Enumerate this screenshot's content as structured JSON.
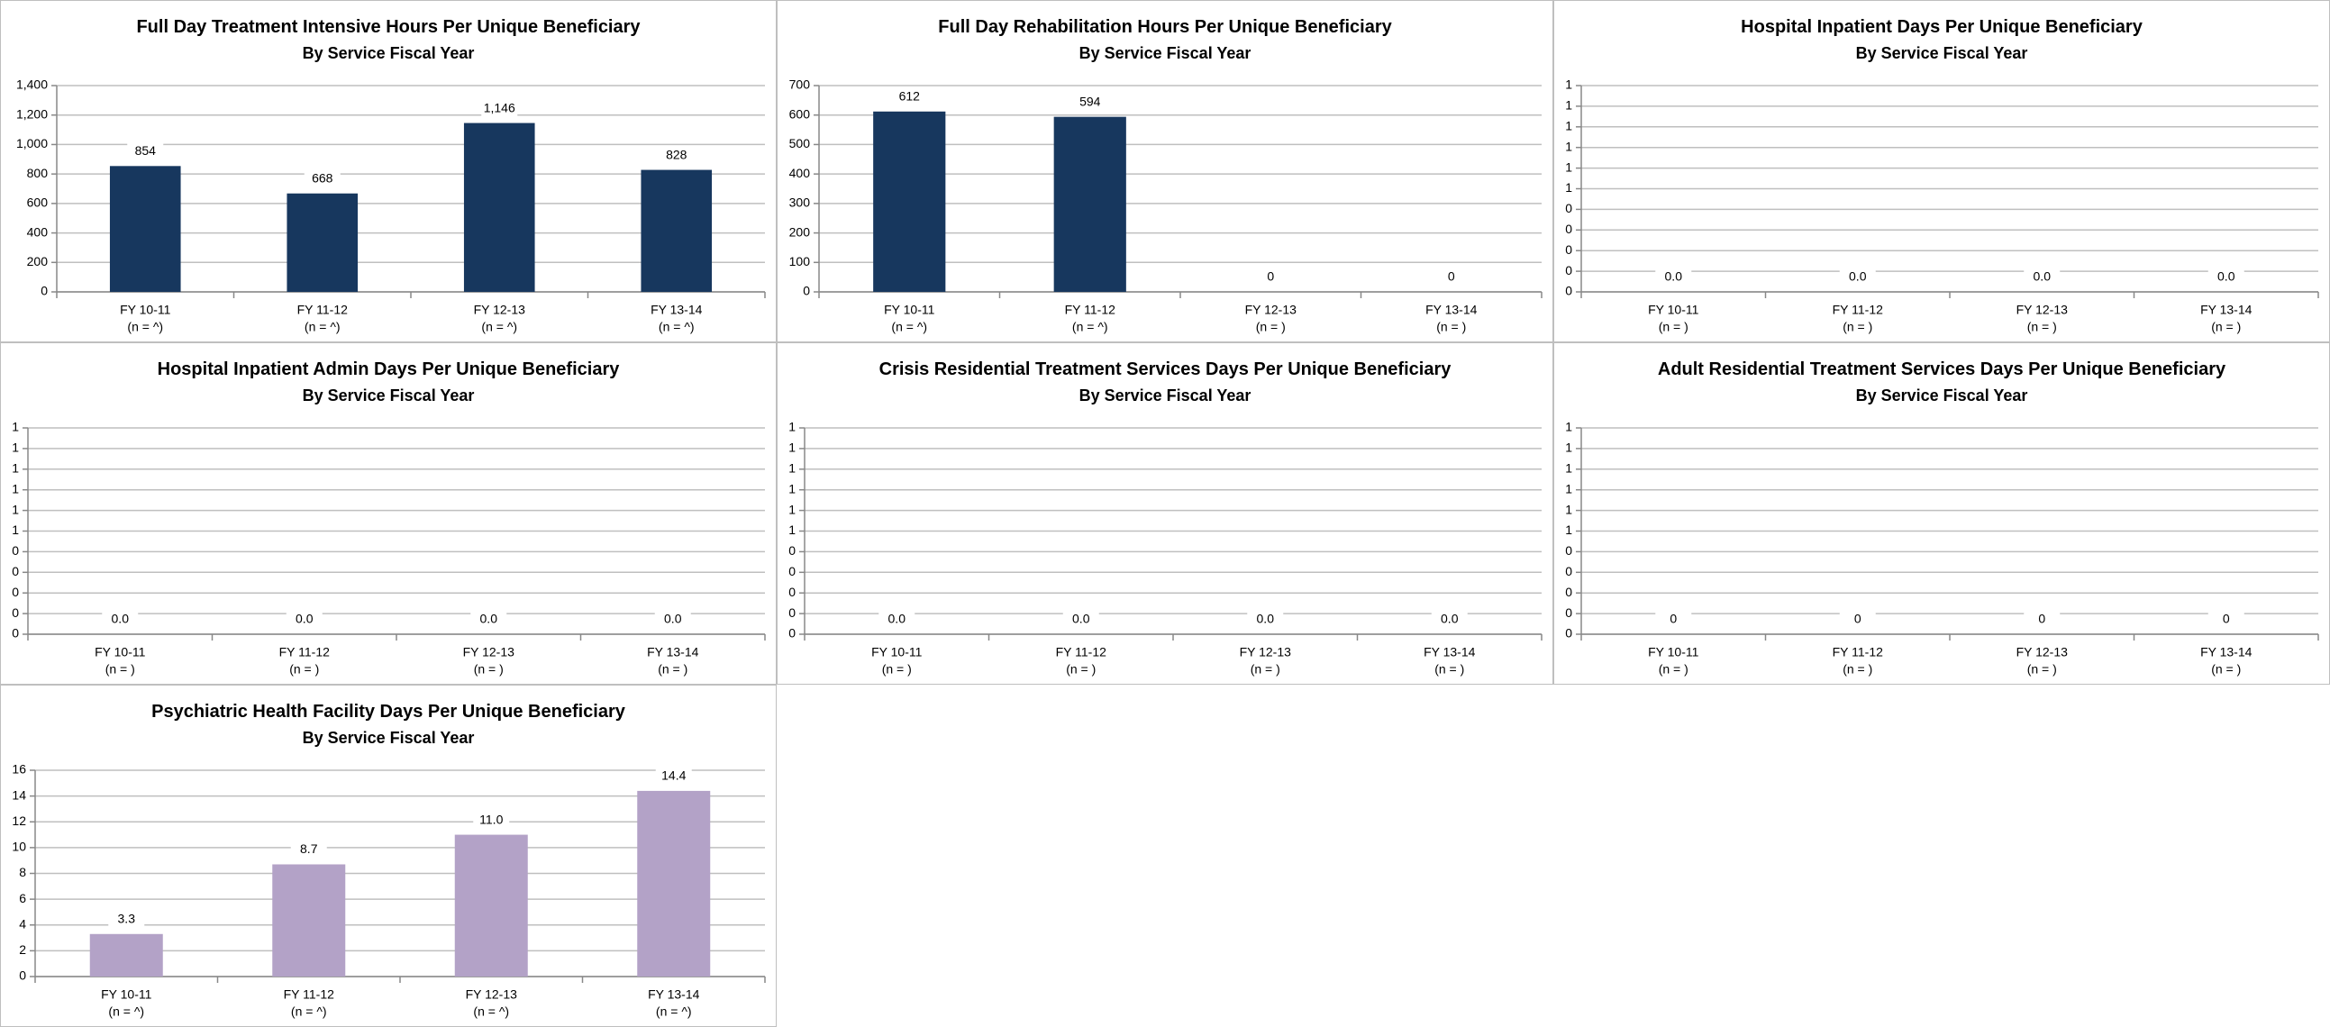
{
  "chart_data": [
    {
      "type": "bar",
      "title": "Full Day Treatment Intensive Hours Per Unique Beneficiary",
      "subtitle": "By Service Fiscal Year",
      "categories": [
        "FY 10-11",
        "FY 11-12",
        "FY 12-13",
        "FY 13-14"
      ],
      "n_labels": [
        "(n = ^)",
        "(n = ^)",
        "(n = ^)",
        "(n = ^)"
      ],
      "values": [
        854,
        668,
        1146,
        828
      ],
      "value_labels": [
        "854",
        "668",
        "1,146",
        "828"
      ],
      "color": "#17375e",
      "ylim": [
        0,
        1400
      ],
      "yticks": [
        0,
        200,
        400,
        600,
        800,
        {
          "value": 1000,
          "label": "1,000"
        },
        {
          "value": 1200,
          "label": "1,200"
        },
        {
          "value": 1400,
          "label": "1,400"
        }
      ],
      "grid": true
    },
    {
      "type": "bar",
      "title": "Full Day Rehabilitation Hours Per Unique Beneficiary",
      "subtitle": "By Service Fiscal Year",
      "categories": [
        "FY 10-11",
        "FY 11-12",
        "FY 12-13",
        "FY 13-14"
      ],
      "n_labels": [
        "(n = ^)",
        "(n = ^)",
        "(n = )",
        "(n = )"
      ],
      "values": [
        612,
        594,
        0,
        0
      ],
      "color": "#17375e",
      "ylim": [
        0,
        700
      ],
      "yticks": [
        0,
        100,
        200,
        300,
        400,
        500,
        600,
        700
      ],
      "grid": true
    },
    {
      "type": "bar",
      "title": "Hospital Inpatient Days Per Unique Beneficiary",
      "subtitle": "By Service Fiscal Year",
      "categories": [
        "FY 10-11",
        "FY 11-12",
        "FY 12-13",
        "FY 13-14"
      ],
      "n_labels": [
        "(n = )",
        "(n = )",
        "(n = )",
        "(n = )"
      ],
      "values": [
        0,
        0,
        0,
        0
      ],
      "value_labels": [
        "0.0",
        "0.0",
        "0.0",
        "0.0"
      ],
      "color": "#17375e",
      "ylim": [
        0,
        1
      ],
      "yticks": [
        0,
        {
          "value": 0.1,
          "label": "0"
        },
        {
          "value": 0.2,
          "label": "0"
        },
        {
          "value": 0.3,
          "label": "0"
        },
        {
          "value": 0.4,
          "label": "0"
        },
        {
          "value": 0.5,
          "label": "1"
        },
        {
          "value": 0.6,
          "label": "1"
        },
        {
          "value": 0.7,
          "label": "1"
        },
        {
          "value": 0.8,
          "label": "1"
        },
        {
          "value": 0.9,
          "label": "1"
        },
        1
      ],
      "grid": true
    },
    {
      "type": "bar",
      "title": "Hospital Inpatient Admin Days Per Unique Beneficiary",
      "subtitle": "By Service Fiscal Year",
      "categories": [
        "FY 10-11",
        "FY 11-12",
        "FY 12-13",
        "FY 13-14"
      ],
      "n_labels": [
        "(n = )",
        "(n = )",
        "(n = )",
        "(n = )"
      ],
      "values": [
        0,
        0,
        0,
        0
      ],
      "value_labels": [
        "0.0",
        "0.0",
        "0.0",
        "0.0"
      ],
      "color": "#17375e",
      "ylim": [
        0,
        1
      ],
      "yticks": [
        0,
        {
          "value": 0.1,
          "label": "0"
        },
        {
          "value": 0.2,
          "label": "0"
        },
        {
          "value": 0.3,
          "label": "0"
        },
        {
          "value": 0.4,
          "label": "0"
        },
        {
          "value": 0.5,
          "label": "1"
        },
        {
          "value": 0.6,
          "label": "1"
        },
        {
          "value": 0.7,
          "label": "1"
        },
        {
          "value": 0.8,
          "label": "1"
        },
        {
          "value": 0.9,
          "label": "1"
        },
        1
      ],
      "grid": true
    },
    {
      "type": "bar",
      "title": "Crisis Residential Treatment Services Days Per Unique Beneficiary",
      "subtitle": "By Service Fiscal Year",
      "categories": [
        "FY 10-11",
        "FY 11-12",
        "FY 12-13",
        "FY 13-14"
      ],
      "n_labels": [
        "(n = )",
        "(n = )",
        "(n = )",
        "(n = )"
      ],
      "values": [
        0,
        0,
        0,
        0
      ],
      "value_labels": [
        "0.0",
        "0.0",
        "0.0",
        "0.0"
      ],
      "color": "#17375e",
      "ylim": [
        0,
        1
      ],
      "yticks": [
        0,
        {
          "value": 0.1,
          "label": "0"
        },
        {
          "value": 0.2,
          "label": "0"
        },
        {
          "value": 0.3,
          "label": "0"
        },
        {
          "value": 0.4,
          "label": "0"
        },
        {
          "value": 0.5,
          "label": "1"
        },
        {
          "value": 0.6,
          "label": "1"
        },
        {
          "value": 0.7,
          "label": "1"
        },
        {
          "value": 0.8,
          "label": "1"
        },
        {
          "value": 0.9,
          "label": "1"
        },
        1
      ],
      "grid": true
    },
    {
      "type": "bar",
      "title": "Adult Residential Treatment Services Days Per Unique Beneficiary",
      "subtitle": "By Service Fiscal Year",
      "categories": [
        "FY 10-11",
        "FY 11-12",
        "FY 12-13",
        "FY 13-14"
      ],
      "n_labels": [
        "(n = )",
        "(n = )",
        "(n = )",
        "(n = )"
      ],
      "values": [
        0,
        0,
        0,
        0
      ],
      "color": "#17375e",
      "ylim": [
        0,
        1
      ],
      "yticks": [
        0,
        {
          "value": 0.1,
          "label": "0"
        },
        {
          "value": 0.2,
          "label": "0"
        },
        {
          "value": 0.3,
          "label": "0"
        },
        {
          "value": 0.4,
          "label": "0"
        },
        {
          "value": 0.5,
          "label": "1"
        },
        {
          "value": 0.6,
          "label": "1"
        },
        {
          "value": 0.7,
          "label": "1"
        },
        {
          "value": 0.8,
          "label": "1"
        },
        {
          "value": 0.9,
          "label": "1"
        },
        1
      ],
      "grid": true
    },
    {
      "type": "bar",
      "title": "Psychiatric Health Facility Days Per Unique Beneficiary",
      "subtitle": "By Service Fiscal Year",
      "categories": [
        "FY 10-11",
        "FY 11-12",
        "FY 12-13",
        "FY 13-14"
      ],
      "n_labels": [
        "(n = ^)",
        "(n = ^)",
        "(n = ^)",
        "(n = ^)"
      ],
      "values": [
        3.3,
        8.7,
        11.0,
        14.4
      ],
      "value_labels": [
        "3.3",
        "8.7",
        "11.0",
        "14.4"
      ],
      "color": "#b3a2c7",
      "ylim": [
        0,
        16
      ],
      "yticks": [
        0,
        2,
        4,
        6,
        8,
        10,
        12,
        14,
        16
      ],
      "grid": true
    }
  ]
}
